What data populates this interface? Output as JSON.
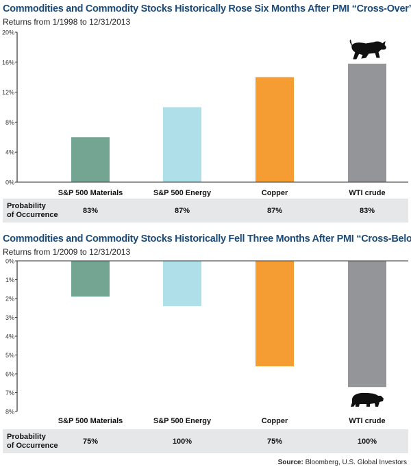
{
  "chart_data": [
    {
      "type": "bar",
      "title": "Commodities and Commodity Stocks Historically Rose Six Months After PMI “Cross-Over”",
      "subtitle": "Returns from 1/1998 to 12/31/2013",
      "categories": [
        "S&P 500 Materials",
        "S&P 500 Energy",
        "Copper",
        "WTI crude"
      ],
      "values": [
        6.0,
        10.0,
        14.0,
        15.8
      ],
      "ylim": [
        0,
        20
      ],
      "yticks": [
        "0%",
        "4%",
        "8%",
        "12%",
        "16%",
        "20%"
      ],
      "ytick_values": [
        0,
        4,
        8,
        12,
        16,
        20
      ],
      "probability_label": [
        "Probability",
        "of Occurrence"
      ],
      "probability": [
        "83%",
        "87%",
        "87%",
        "83%"
      ],
      "colors": [
        "#74a592",
        "#afdfe8",
        "#f59c33",
        "#939598"
      ],
      "icon": "bull-icon",
      "grid": false
    },
    {
      "type": "bar",
      "title": "Commodities and Commodity Stocks Historically Fell Three Months After PMI “Cross-Below”",
      "subtitle": "Returns from 1/2009 to 12/31/2013",
      "categories": [
        "S&P 500 Materials",
        "S&P 500 Energy",
        "Copper",
        "WTI crude"
      ],
      "values": [
        -1.9,
        -2.4,
        -5.6,
        -6.7
      ],
      "ylim": [
        -8,
        0
      ],
      "yticks": [
        "0%",
        "1%",
        "2%",
        "3%",
        "4%",
        "5%",
        "6%",
        "7%",
        "8%"
      ],
      "ytick_values": [
        0,
        -1,
        -2,
        -3,
        -4,
        -5,
        -6,
        -7,
        -8
      ],
      "probability_label": [
        "Probability",
        "of Occurrence"
      ],
      "probability": [
        "75%",
        "100%",
        "75%",
        "100%"
      ],
      "colors": [
        "#74a592",
        "#afdfe8",
        "#f59c33",
        "#939598"
      ],
      "icon": "bear-icon",
      "grid": false
    }
  ],
  "source": {
    "label": "Source:",
    "text": " Bloomberg, U.S. Global Investors"
  }
}
